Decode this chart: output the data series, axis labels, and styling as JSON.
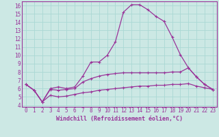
{
  "xlabel": "Windchill (Refroidissement éolien,°C)",
  "bg_color": "#cce8e4",
  "grid_color": "#aad8d4",
  "line_color": "#993399",
  "xlim": [
    -0.5,
    23.5
  ],
  "ylim": [
    3.8,
    16.5
  ],
  "xticks": [
    0,
    1,
    2,
    3,
    4,
    5,
    6,
    7,
    8,
    9,
    10,
    11,
    12,
    13,
    14,
    15,
    16,
    17,
    18,
    19,
    20,
    21,
    22,
    23
  ],
  "yticks": [
    4,
    5,
    6,
    7,
    8,
    9,
    10,
    11,
    12,
    13,
    14,
    15,
    16
  ],
  "series1_x": [
    0,
    1,
    2,
    3,
    4,
    5,
    6,
    7,
    8,
    9,
    10,
    11,
    12,
    13,
    14,
    15,
    16,
    17,
    18,
    19,
    20,
    21,
    22,
    23
  ],
  "series1_y": [
    6.5,
    5.8,
    4.4,
    6.0,
    6.2,
    6.0,
    6.2,
    7.5,
    9.2,
    9.2,
    10.0,
    11.6,
    15.2,
    16.1,
    16.1,
    15.5,
    14.7,
    14.1,
    12.2,
    10.1,
    8.5,
    7.4,
    6.5,
    5.9
  ],
  "series2_x": [
    0,
    1,
    2,
    3,
    4,
    5,
    6,
    7,
    8,
    9,
    10,
    11,
    12,
    13,
    14,
    15,
    16,
    17,
    18,
    19,
    20,
    21,
    22,
    23
  ],
  "series2_y": [
    6.5,
    5.8,
    4.4,
    5.9,
    5.8,
    5.9,
    6.0,
    6.8,
    7.2,
    7.5,
    7.7,
    7.8,
    7.9,
    7.9,
    7.9,
    7.9,
    7.9,
    7.9,
    8.0,
    8.0,
    8.5,
    7.4,
    6.5,
    5.9
  ],
  "series3_x": [
    0,
    1,
    2,
    3,
    4,
    5,
    6,
    7,
    8,
    9,
    10,
    11,
    12,
    13,
    14,
    15,
    16,
    17,
    18,
    19,
    20,
    21,
    22,
    23
  ],
  "series3_y": [
    6.5,
    5.8,
    4.4,
    5.2,
    5.0,
    5.1,
    5.3,
    5.5,
    5.6,
    5.8,
    5.9,
    6.0,
    6.1,
    6.2,
    6.3,
    6.3,
    6.4,
    6.4,
    6.5,
    6.5,
    6.6,
    6.3,
    6.1,
    5.9
  ]
}
